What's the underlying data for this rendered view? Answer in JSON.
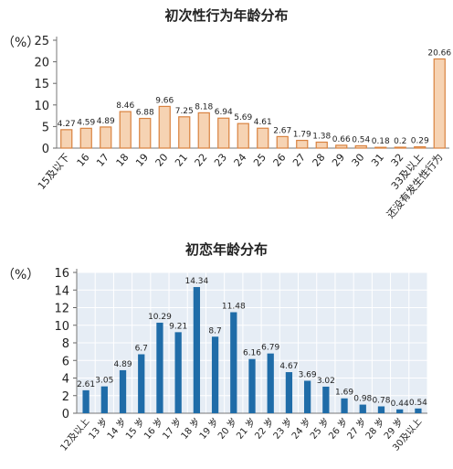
{
  "chart_data": [
    {
      "type": "bar",
      "title": "初次性行为年龄分布",
      "unit": "（%）",
      "ylim": [
        0,
        25
      ],
      "yticks": [
        "0",
        "5",
        "10",
        "15",
        "20",
        "25"
      ],
      "grid": false,
      "bar_color": "#f6d3b3",
      "bar_edge": "#d9823f",
      "categories": [
        "15及以下",
        "16",
        "17",
        "18",
        "19",
        "20",
        "21",
        "22",
        "23",
        "24",
        "25",
        "26",
        "27",
        "28",
        "29",
        "30",
        "31",
        "32",
        "33及以上",
        "还没有发生性行为"
      ],
      "values": [
        4.27,
        4.59,
        4.89,
        8.46,
        6.88,
        9.66,
        7.25,
        8.18,
        6.94,
        5.69,
        4.61,
        2.67,
        1.79,
        1.38,
        0.66,
        0.54,
        0.18,
        0.2,
        0.29,
        20.66
      ],
      "value_labels": [
        "4.27",
        "4.59",
        "4.89",
        "8.46",
        "6.88",
        "9.66",
        "7.25",
        "8.18",
        "6.94",
        "5.69",
        "4.61",
        "2.67",
        "1.79",
        "1.38",
        "0.66",
        "0.54",
        "0.18",
        "0.2",
        "0.29",
        "20.66"
      ]
    },
    {
      "type": "bar",
      "title": "初恋年龄分布",
      "unit": "（%）",
      "ylim": [
        0,
        16
      ],
      "yticks": [
        "0",
        "2",
        "4",
        "6",
        "8",
        "10",
        "12",
        "14",
        "16"
      ],
      "grid": true,
      "bar_color": "#1f6ca8",
      "categories": [
        "12及以上",
        "13 岁",
        "14 岁",
        "15 岁",
        "16 岁",
        "17 岁",
        "18 岁",
        "19 岁",
        "20 岁",
        "21 岁",
        "22 岁",
        "23 岁",
        "24 岁",
        "25 岁",
        "26 岁",
        "27 岁",
        "28 岁",
        "29 岁",
        "30及以上"
      ],
      "values": [
        2.61,
        3.05,
        4.89,
        6.7,
        10.29,
        9.21,
        14.34,
        8.7,
        11.48,
        6.16,
        6.79,
        4.67,
        3.69,
        3.02,
        1.69,
        0.98,
        0.78,
        0.44,
        0.54
      ],
      "value_labels": [
        "2.61",
        "3.05",
        "4.89",
        "6.7",
        "10.29",
        "9.21",
        "14.34",
        "8.7",
        "11.48",
        "6.16",
        "6.79",
        "4.67",
        "3.69",
        "3.02",
        "1.69",
        "0.98",
        "0.78",
        "0.44",
        "0.54"
      ]
    }
  ]
}
